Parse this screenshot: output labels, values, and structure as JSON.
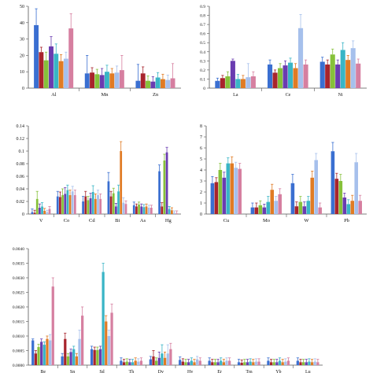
{
  "bar_colors": [
    "#3a6fd1",
    "#a8242c",
    "#86c13a",
    "#6a3cb0",
    "#39b5c6",
    "#e07b24",
    "#a6c0ec",
    "#d67fa0"
  ],
  "chart_data": [
    {
      "type": "bar",
      "categories": [
        "Al",
        "Mn",
        "Zn"
      ],
      "ylim": [
        0,
        50
      ],
      "yticks": [
        "0",
        "10",
        "20",
        "30",
        "40",
        "50"
      ],
      "series_values": [
        [
          38.5,
          22,
          17,
          25.5,
          21,
          16.5,
          18,
          36.5
        ],
        [
          9,
          9.5,
          8.5,
          8,
          10,
          9,
          9.5,
          11
        ],
        [
          4.5,
          9,
          4.5,
          4,
          6.5,
          5.5,
          5,
          6
        ]
      ],
      "errors": [
        [
          10,
          3,
          5,
          6,
          6,
          4,
          4,
          9
        ],
        [
          11,
          3,
          3,
          4,
          4,
          3,
          4,
          9
        ],
        [
          10,
          4,
          3,
          3,
          3,
          3,
          3,
          9
        ]
      ]
    },
    {
      "type": "bar",
      "categories": [
        "La",
        "Ce",
        "Ni"
      ],
      "ylim": [
        0,
        0.9
      ],
      "yticks": [
        "0",
        "0.1",
        "0.2",
        "0.3",
        "0.4",
        "0.5",
        "0.6",
        "0.7",
        "0.8",
        "0.9"
      ],
      "series_values": [
        [
          0.08,
          0.11,
          0.13,
          0.3,
          0.1,
          0.1,
          0.12,
          0.13
        ],
        [
          0.26,
          0.17,
          0.22,
          0.25,
          0.28,
          0.22,
          0.66,
          0.26
        ],
        [
          0.29,
          0.26,
          0.37,
          0.26,
          0.42,
          0.31,
          0.44,
          0.27
        ]
      ],
      "errors": [
        [
          0.03,
          0.03,
          0.05,
          0.02,
          0.05,
          0.04,
          0.15,
          0.05
        ],
        [
          0.05,
          0.03,
          0.05,
          0.05,
          0.05,
          0.05,
          0.15,
          0.05
        ],
        [
          0.05,
          0.05,
          0.06,
          0.05,
          0.08,
          0.05,
          0.08,
          0.05
        ]
      ]
    },
    {
      "type": "bar",
      "categories": [
        "V",
        "Co",
        "Cd",
        "Bi",
        "As",
        "Hg"
      ],
      "ylim": [
        0,
        0.14
      ],
      "yticks": [
        "0",
        "0.02",
        "0.04",
        "0.06",
        "0.08",
        "0.1",
        "0.12",
        "0.14"
      ],
      "series_values": [
        [
          0.003,
          0.002,
          0.024,
          0.01,
          0.012,
          0.005,
          0.003,
          0.008
        ],
        [
          0.028,
          0.027,
          0.03,
          0.032,
          0.038,
          0.03,
          0.036,
          0.03
        ],
        [
          0.02,
          0.028,
          0.022,
          0.025,
          0.035,
          0.024,
          0.03,
          0.024
        ],
        [
          0.052,
          0.028,
          0.033,
          0.012,
          0.036,
          0.1,
          0.018,
          0.016
        ],
        [
          0.014,
          0.012,
          0.015,
          0.012,
          0.011,
          0.012,
          0.01,
          0.01
        ],
        [
          0.068,
          0.012,
          0.085,
          0.098,
          0.008,
          0.006,
          0.002,
          0.001
        ]
      ],
      "errors": [
        [
          0.005,
          0.004,
          0.012,
          0.006,
          0.006,
          0.004,
          0.003,
          0.004
        ],
        [
          0.008,
          0.008,
          0.01,
          0.01,
          0.008,
          0.008,
          0.008,
          0.008
        ],
        [
          0.008,
          0.008,
          0.006,
          0.008,
          0.01,
          0.008,
          0.008,
          0.008
        ],
        [
          0.014,
          0.008,
          0.008,
          0.005,
          0.01,
          0.015,
          0.008,
          0.005
        ],
        [
          0.005,
          0.004,
          0.004,
          0.004,
          0.004,
          0.004,
          0.004,
          0.004
        ],
        [
          0.01,
          0.006,
          0.01,
          0.008,
          0.004,
          0.004,
          0.003,
          0.004
        ]
      ]
    },
    {
      "type": "bar",
      "categories": [
        "Cu",
        "Mo",
        "W",
        "Pb"
      ],
      "ylim": [
        0,
        8
      ],
      "yticks": [
        "0",
        "1",
        "2",
        "3",
        "4",
        "5",
        "6",
        "7",
        "8"
      ],
      "series_values": [
        [
          2.8,
          2.9,
          4,
          3.3,
          4.6,
          4.6,
          4.2,
          4.1
        ],
        [
          0.6,
          0.6,
          0.8,
          0.6,
          1.1,
          2.2,
          1.2,
          1.8
        ],
        [
          2.8,
          0.7,
          1.1,
          0.7,
          1.2,
          3.3,
          4.9,
          0.6
        ],
        [
          5.7,
          3.2,
          3,
          1.5,
          0.9,
          1.2,
          4.7,
          1.2
        ]
      ],
      "errors": [
        [
          0.6,
          0.4,
          0.6,
          0.5,
          0.5,
          0.6,
          0.5,
          0.5
        ],
        [
          0.4,
          0.4,
          0.4,
          0.3,
          0.5,
          0.5,
          0.4,
          0.5
        ],
        [
          0.8,
          0.4,
          0.5,
          0.4,
          0.4,
          0.6,
          0.6,
          0.4
        ],
        [
          0.8,
          0.5,
          0.6,
          0.4,
          0.4,
          0.5,
          0.8,
          0.5
        ]
      ]
    },
    {
      "type": "bar",
      "categories": [
        "Be",
        "Sn",
        "Sd",
        "Th",
        "Dy",
        "Hy",
        "Er",
        "Tm",
        "Yb",
        "Lu"
      ],
      "ylim": [
        0,
        0.004
      ],
      "yticks": [
        "0.0000",
        "0.0005",
        "0.0010",
        "0.0015",
        "0.0020",
        "0.0025",
        "0.0030",
        "0.0035",
        "0.0040"
      ],
      "series_values": [
        [
          0.00085,
          0.0004,
          0.00062,
          0.0008,
          0.0007,
          0.0009,
          0.00085,
          0.0027
        ],
        [
          0.0003,
          0.0009,
          0.0003,
          0.00045,
          0.00055,
          0.0003,
          0.0009,
          0.0017
        ],
        [
          0.00055,
          0.00052,
          0.00052,
          0.00055,
          0.0032,
          0.0015,
          0.001,
          0.0018
        ],
        [
          0.00015,
          0.0001,
          0.00012,
          0.0001,
          0.0001,
          0.00015,
          0.00012,
          0.00015
        ],
        [
          0.0002,
          0.0003,
          0.00015,
          0.00025,
          0.0004,
          0.00025,
          0.0004,
          0.00055
        ],
        [
          0.00018,
          0.00012,
          0.0001,
          0.0001,
          0.00015,
          0.0001,
          0.0002,
          0.00015
        ],
        [
          0.00015,
          0.0001,
          0.0001,
          0.0001,
          0.00015,
          0.0001,
          0.00015,
          0.00015
        ],
        [
          0.0001,
          8e-05,
          0.0001,
          0.0001,
          0.00012,
          0.0001,
          0.00012,
          0.00012
        ],
        [
          0.00015,
          0.0001,
          0.0001,
          0.0001,
          0.00015,
          0.0001,
          0.00012,
          0.00015
        ],
        [
          0.00015,
          0.0001,
          0.0001,
          0.0001,
          0.00012,
          0.0001,
          0.00012,
          0.0001
        ]
      ],
      "errors": [
        [
          5e-05,
          0.0001,
          0.0001,
          0.0001,
          0.0001,
          0.0001,
          0.0002,
          0.0003
        ],
        [
          0.0001,
          0.0002,
          0.0001,
          0.0001,
          0.0001,
          0.0001,
          0.0003,
          0.0003
        ],
        [
          0.0001,
          0.0001,
          0.0001,
          0.0001,
          0.0003,
          0.0002,
          0.0002,
          0.0003
        ],
        [
          0.0001,
          0.0001,
          0.0001,
          0.0001,
          0.0001,
          0.0001,
          0.0001,
          0.0001
        ],
        [
          0.0001,
          0.0002,
          0.0001,
          0.0002,
          0.0003,
          0.0002,
          0.0003,
          0.0002
        ],
        [
          0.0001,
          0.0001,
          0.0001,
          0.0001,
          0.0001,
          0.0001,
          0.0001,
          0.0001
        ],
        [
          0.0001,
          0.0001,
          0.0001,
          0.0001,
          0.0001,
          0.0001,
          0.0001,
          0.0001
        ],
        [
          0.0001,
          0.0001,
          0.0001,
          0.0001,
          0.0001,
          0.0001,
          0.0001,
          0.0001
        ],
        [
          0.0001,
          0.0001,
          0.0001,
          0.0001,
          0.0001,
          0.0001,
          0.0001,
          0.0001
        ],
        [
          0.0001,
          0.0001,
          0.0001,
          0.0001,
          0.0001,
          0.0001,
          0.0001,
          0.0001
        ]
      ]
    }
  ]
}
